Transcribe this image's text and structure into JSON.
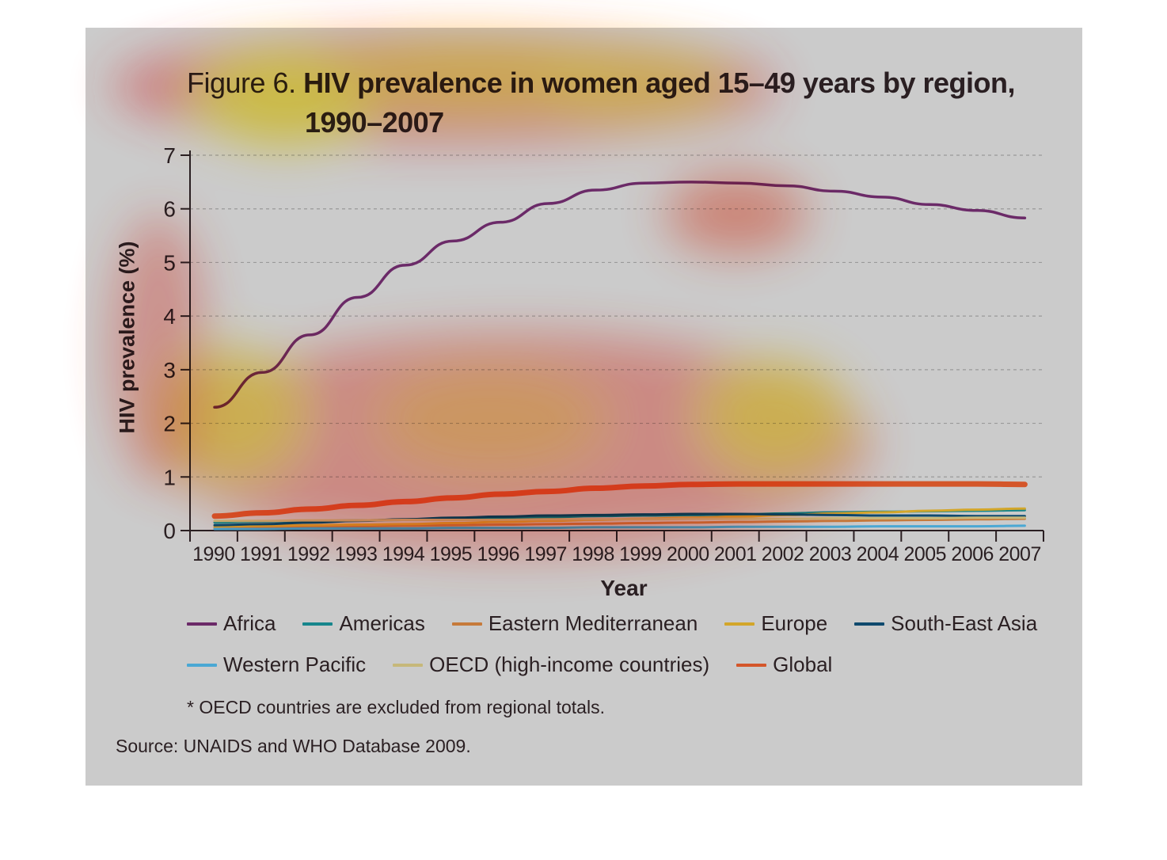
{
  "chart_data": {
    "type": "line",
    "title_prefix": "Figure 6.",
    "title_main": "HIV prevalence in women aged 15–49 years by region,",
    "title_line2": "1990–2007",
    "xlabel": "Year",
    "ylabel": "HIV prevalence (%)",
    "ylim": [
      0,
      7
    ],
    "yticks": [
      "0",
      "1",
      "2",
      "3",
      "4",
      "5",
      "6",
      "7"
    ],
    "x": [
      "1990",
      "1991",
      "1992",
      "1993",
      "1994",
      "1995",
      "1996",
      "1997",
      "1998",
      "1999",
      "2000",
      "2001",
      "2002",
      "2003",
      "2004",
      "2005",
      "2006",
      "2007"
    ],
    "grid": "horizontal dashed",
    "legend_position": "bottom",
    "series": [
      {
        "name": "Africa",
        "color": "#6b2a68",
        "values": [
          2.3,
          2.95,
          3.65,
          4.35,
          4.95,
          5.4,
          5.75,
          6.1,
          6.35,
          6.48,
          6.5,
          6.48,
          6.43,
          6.33,
          6.22,
          6.08,
          5.97,
          5.83
        ]
      },
      {
        "name": "Americas",
        "color": "#17868c",
        "values": [
          0.15,
          0.17,
          0.18,
          0.19,
          0.2,
          0.21,
          0.23,
          0.25,
          0.27,
          0.28,
          0.29,
          0.3,
          0.32,
          0.34,
          0.35,
          0.36,
          0.37,
          0.38
        ]
      },
      {
        "name": "Eastern Mediterranean",
        "color": "#c67a3a",
        "values": [
          0.05,
          0.06,
          0.07,
          0.08,
          0.09,
          0.1,
          0.11,
          0.12,
          0.13,
          0.14,
          0.15,
          0.16,
          0.17,
          0.18,
          0.19,
          0.2,
          0.21,
          0.22
        ]
      },
      {
        "name": "Europe",
        "color": "#d3a62a",
        "values": [
          0.08,
          0.09,
          0.1,
          0.11,
          0.12,
          0.14,
          0.16,
          0.18,
          0.2,
          0.22,
          0.24,
          0.26,
          0.29,
          0.32,
          0.34,
          0.37,
          0.39,
          0.41
        ]
      },
      {
        "name": "South-East Asia",
        "color": "#0f4a6e",
        "values": [
          0.1,
          0.12,
          0.15,
          0.18,
          0.21,
          0.24,
          0.26,
          0.28,
          0.29,
          0.3,
          0.31,
          0.31,
          0.3,
          0.29,
          0.28,
          0.28,
          0.27,
          0.27
        ]
      },
      {
        "name": "Western Pacific",
        "color": "#4aa8d4",
        "values": [
          0.03,
          0.03,
          0.04,
          0.04,
          0.04,
          0.05,
          0.05,
          0.05,
          0.06,
          0.06,
          0.06,
          0.07,
          0.07,
          0.07,
          0.08,
          0.08,
          0.08,
          0.09
        ]
      },
      {
        "name": "OECD (high-income countries)",
        "color": "#c6b87a",
        "values": [
          0.18,
          0.18,
          0.19,
          0.19,
          0.2,
          0.2,
          0.2,
          0.21,
          0.21,
          0.21,
          0.22,
          0.22,
          0.22,
          0.23,
          0.23,
          0.23,
          0.24,
          0.24
        ]
      },
      {
        "name": "Global",
        "color": "#d4562a",
        "values": [
          0.27,
          0.33,
          0.4,
          0.47,
          0.54,
          0.61,
          0.68,
          0.73,
          0.79,
          0.83,
          0.86,
          0.87,
          0.87,
          0.87,
          0.87,
          0.87,
          0.87,
          0.86
        ]
      }
    ],
    "note": "* OECD countries are excluded from regional totals.",
    "source": "Source: UNAIDS and WHO Database 2009."
  }
}
